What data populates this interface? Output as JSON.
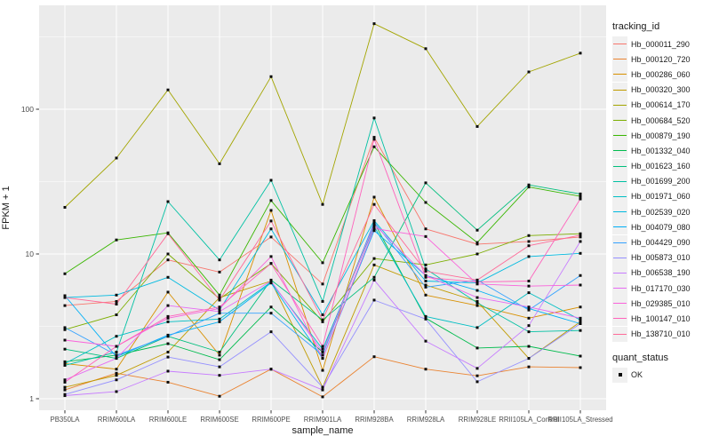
{
  "chart_data": {
    "type": "line",
    "xlabel": "sample_name",
    "ylabel": "FPKM + 1",
    "y_scale": "log10",
    "y_ticks": [
      1,
      10,
      100
    ],
    "ylim": [
      1,
      520
    ],
    "grid": "major-white-on-gray, minor at half-decades",
    "panel_bg": "#ebebeb",
    "point_shape": "small-black-square",
    "legend_title": "tracking_id",
    "legend_position": "right",
    "quant_status": {
      "title": "quant_status",
      "label": "OK"
    },
    "categories": [
      "PB350LA",
      "RRIM600LA",
      "RRIM600LE",
      "RRIM600SE",
      "RRIM600PE",
      "RRIM901LA",
      "RRIM928BA",
      "RRIM928LA",
      "RRIM928LE",
      "RRII105LA_Control",
      "RRII105LA_Stressed"
    ],
    "series": [
      {
        "name": "Hb_000011_290",
        "color": "#F8766D",
        "values": [
          4.4,
          4.7,
          9.1,
          7.5,
          13.1,
          6.2,
          64,
          14.9,
          11.7,
          12.2,
          13.1
        ]
      },
      {
        "name": "Hb_000120_720",
        "color": "#EA8331",
        "values": [
          1.15,
          1.5,
          1.3,
          1.04,
          1.6,
          1.03,
          1.95,
          1.6,
          1.44,
          1.66,
          1.64
        ]
      },
      {
        "name": "Hb_000286_060",
        "color": "#D89000",
        "values": [
          1.75,
          1.6,
          5.45,
          2.0,
          20,
          1.57,
          24.7,
          5.2,
          4.4,
          3.6,
          4.3
        ]
      },
      {
        "name": "Hb_000320_300",
        "color": "#C09B00",
        "values": [
          1.2,
          1.45,
          2.1,
          5.0,
          6.5,
          1.2,
          8.4,
          6.1,
          4.7,
          1.9,
          3.4
        ]
      },
      {
        "name": "Hb_000614_170",
        "color": "#A3A500",
        "values": [
          21,
          46,
          136,
          42,
          168,
          22,
          390,
          262,
          76,
          181,
          244
        ]
      },
      {
        "name": "Hb_000684_520",
        "color": "#7CAE00",
        "values": [
          3.0,
          3.8,
          10,
          4.9,
          8.6,
          3.4,
          9.3,
          8.4,
          10,
          13.4,
          13.8
        ]
      },
      {
        "name": "Hb_000879_190",
        "color": "#39B600",
        "values": [
          7.3,
          12.5,
          14,
          5.2,
          23.4,
          8.7,
          55,
          22.7,
          12,
          29,
          25
        ]
      },
      {
        "name": "Hb_001332_040",
        "color": "#00BB4E",
        "values": [
          1.8,
          2.0,
          2.4,
          1.86,
          4.3,
          2.1,
          16.5,
          3.6,
          2.24,
          2.3,
          1.97
        ]
      },
      {
        "name": "Hb_001623_160",
        "color": "#00BF7D",
        "values": [
          2.2,
          1.9,
          2.7,
          2.1,
          6.6,
          3.5,
          6.9,
          31,
          14.6,
          30,
          26
        ]
      },
      {
        "name": "Hb_001699_200",
        "color": "#00C1A3",
        "values": [
          1.7,
          2.1,
          23,
          9.1,
          32.3,
          4.7,
          87,
          7.9,
          4.6,
          2.9,
          2.96
        ]
      },
      {
        "name": "Hb_001971_060",
        "color": "#00BFC4",
        "values": [
          1.75,
          2.7,
          3.4,
          3.55,
          6.4,
          2.2,
          15.5,
          3.7,
          3.1,
          5.4,
          3.5
        ]
      },
      {
        "name": "Hb_002539_020",
        "color": "#00BAE0",
        "values": [
          5.0,
          5.2,
          6.9,
          4.1,
          14.9,
          3.8,
          17,
          6.5,
          6.3,
          9.6,
          10.1
        ]
      },
      {
        "name": "Hb_004079_080",
        "color": "#00B0F6",
        "values": [
          5.15,
          1.95,
          2.75,
          3.4,
          6.3,
          1.9,
          14.5,
          7.1,
          5.6,
          4.2,
          3.3
        ]
      },
      {
        "name": "Hb_004429_090",
        "color": "#35A2FF",
        "values": [
          3.1,
          2.0,
          2.7,
          3.9,
          3.9,
          2.0,
          16.6,
          5.9,
          6.6,
          4.1,
          7.1
        ]
      },
      {
        "name": "Hb_005873_010",
        "color": "#9590FF",
        "values": [
          1.07,
          1.35,
          1.94,
          1.66,
          2.9,
          1.2,
          4.8,
          3.55,
          1.31,
          1.9,
          3.3
        ]
      },
      {
        "name": "Hb_006538_190",
        "color": "#C77CFF",
        "values": [
          1.05,
          1.12,
          1.55,
          1.45,
          1.6,
          1.15,
          6.6,
          2.5,
          1.62,
          3.2,
          12.2
        ]
      },
      {
        "name": "Hb_017170_030",
        "color": "#E76BF3",
        "values": [
          1.35,
          1.9,
          4.4,
          4.0,
          6.5,
          2.1,
          16,
          7.1,
          5.0,
          4.3,
          3.6
        ]
      },
      {
        "name": "Hb_029385_010",
        "color": "#FA62DB",
        "values": [
          2.54,
          2.3,
          3.6,
          4.2,
          9.6,
          1.9,
          15,
          13.2,
          6.2,
          6.0,
          6.1
        ]
      },
      {
        "name": "Hb_100147_010",
        "color": "#FF62BC",
        "values": [
          1.3,
          2.3,
          3.7,
          4.3,
          8.6,
          2.3,
          62,
          6.9,
          6.4,
          6.5,
          24
        ]
      },
      {
        "name": "Hb_138710_010",
        "color": "#FF6A98",
        "values": [
          5.0,
          4.5,
          13.8,
          4.8,
          16.9,
          3.5,
          22,
          7.6,
          6.6,
          11.4,
          13.5
        ]
      }
    ]
  }
}
